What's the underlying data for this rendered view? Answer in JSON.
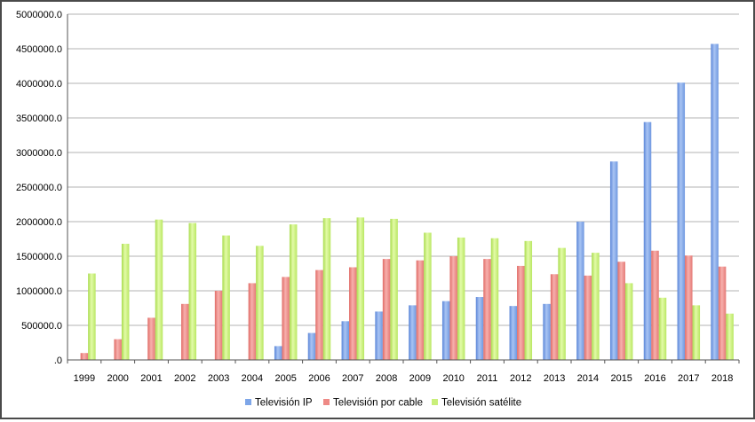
{
  "chart_data": {
    "type": "bar",
    "title": "",
    "xlabel": "",
    "ylabel": "",
    "categories": [
      "1999",
      "2000",
      "2001",
      "2002",
      "2003",
      "2004",
      "2005",
      "2006",
      "2007",
      "2008",
      "2009",
      "2010",
      "2011",
      "2012",
      "2013",
      "2014",
      "2015",
      "2016",
      "2017",
      "2018"
    ],
    "ylim": [
      0,
      5000000
    ],
    "yticks": [
      0,
      500000,
      1000000,
      1500000,
      2000000,
      2500000,
      3000000,
      3500000,
      4000000,
      4500000,
      5000000
    ],
    "ytick_labels": [
      ".0",
      "500000.0",
      "1000000.0",
      "1500000.0",
      "2000000.0",
      "2500000.0",
      "3000000.0",
      "3500000.0",
      "4000000.0",
      "4500000.0",
      "5000000.0"
    ],
    "grid": true,
    "legend_position": "bottom",
    "series": [
      {
        "name": "Televisión IP",
        "color": "#7ea6e8",
        "values": [
          0,
          0,
          0,
          0,
          0,
          0,
          200000,
          390000,
          560000,
          700000,
          790000,
          850000,
          910000,
          780000,
          810000,
          2000000,
          2870000,
          3440000,
          4010000,
          4570000
        ]
      },
      {
        "name": "Televisión por cable",
        "color": "#ee8a86",
        "values": [
          100000,
          300000,
          610000,
          810000,
          1000000,
          1110000,
          1200000,
          1300000,
          1340000,
          1460000,
          1440000,
          1500000,
          1460000,
          1360000,
          1240000,
          1220000,
          1420000,
          1580000,
          1510000,
          1350000
        ]
      },
      {
        "name": "Televisión satélite",
        "color": "#c9ef7a",
        "values": [
          1250000,
          1680000,
          2030000,
          1980000,
          1800000,
          1650000,
          1960000,
          2050000,
          2060000,
          2040000,
          1840000,
          1770000,
          1760000,
          1720000,
          1620000,
          1550000,
          1110000,
          900000,
          790000,
          670000
        ]
      }
    ]
  }
}
